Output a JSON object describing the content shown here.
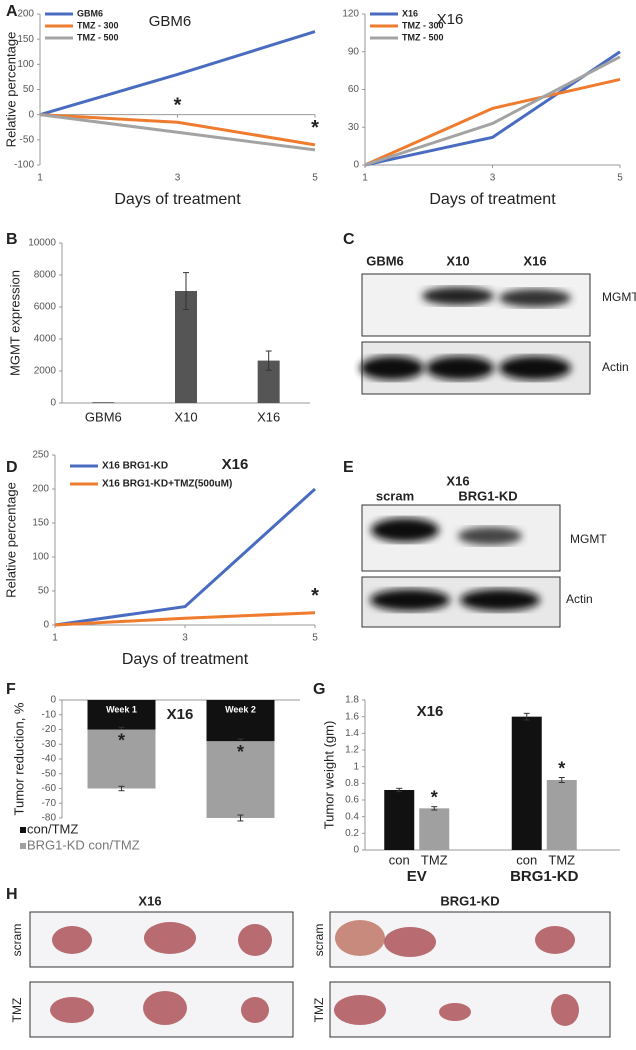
{
  "panels": [
    "A",
    "B",
    "C",
    "D",
    "E",
    "F",
    "G",
    "H"
  ],
  "chart_data": [
    {
      "type": "line",
      "title": "GBM6",
      "x_label": "Days of treatment",
      "y_label": "Relative percentage",
      "x": [
        1,
        3,
        5
      ],
      "xlim": [
        1,
        5
      ],
      "xticks": [
        1,
        3,
        5
      ],
      "ylim": [
        -100,
        200
      ],
      "yticks": [
        -100,
        -50,
        0,
        50,
        100,
        150,
        200
      ],
      "series": [
        {
          "name": "GBM6",
          "color": "#4a6cc0",
          "values": [
            0,
            80,
            165
          ]
        },
        {
          "name": "TMZ - 300",
          "color": "#ef7b2e",
          "values": [
            0,
            -15,
            -60
          ]
        },
        {
          "name": "TMZ - 500",
          "color": "#a3a3a3",
          "values": [
            0,
            -35,
            -70
          ]
        }
      ],
      "annotations": [
        "*",
        "*"
      ]
    },
    {
      "type": "line",
      "title": "X16",
      "x_label": "Days of treatment",
      "x": [
        1,
        3,
        5
      ],
      "xlim": [
        1,
        5
      ],
      "xticks": [
        1,
        3,
        5
      ],
      "ylim": [
        0,
        120
      ],
      "yticks": [
        0,
        30,
        60,
        90,
        120
      ],
      "series": [
        {
          "name": "X16",
          "color": "#4a6cc0",
          "values": [
            0,
            22,
            90
          ]
        },
        {
          "name": "TMZ - 300",
          "color": "#ef7b2e",
          "values": [
            0,
            45,
            68
          ]
        },
        {
          "name": "TMZ - 500",
          "color": "#a3a3a3",
          "values": [
            0,
            33,
            86
          ]
        }
      ]
    },
    {
      "type": "bar",
      "y_label": "MGMT expression",
      "categories": [
        "GBM6",
        "X10",
        "X16"
      ],
      "values": [
        50,
        7000,
        2650
      ],
      "errors": [
        0,
        1150,
        600
      ],
      "color": "#555555",
      "ylim": [
        0,
        10000
      ],
      "yticks": [
        0,
        2000,
        4000,
        6000,
        8000,
        10000
      ]
    },
    {
      "type": "line",
      "title": "X16",
      "x_label": "Days of treatment",
      "y_label": "Relative percentage",
      "x": [
        1,
        3,
        5
      ],
      "xlim": [
        1,
        5
      ],
      "xticks": [
        1,
        3,
        5
      ],
      "ylim": [
        0,
        250
      ],
      "yticks": [
        0,
        50,
        100,
        150,
        200,
        250
      ],
      "series": [
        {
          "name": "X16 BRG1-KD",
          "color": "#4a6cc0",
          "values": [
            0,
            27,
            200
          ]
        },
        {
          "name": "X16 BRG1-KD+TMZ(500uM)",
          "color": "#ef7b2e",
          "values": [
            0,
            10,
            18
          ]
        }
      ],
      "annotations": [
        "*"
      ]
    },
    {
      "type": "stacked_bar",
      "title": "X16",
      "y_label": "Tumor reduction, %",
      "categories": [
        "Week 1",
        "Week 2"
      ],
      "ylim": [
        -80,
        0
      ],
      "yticks": [
        -80,
        -70,
        -60,
        -50,
        -40,
        -30,
        -20,
        -10,
        0
      ],
      "series": [
        {
          "name": "con/TMZ",
          "color": "#111111",
          "values": [
            -20,
            -28
          ],
          "errors": [
            1.5,
            1.5
          ]
        },
        {
          "name": "BRG1-KD  con/TMZ",
          "color": "#a0a0a0",
          "values": [
            -40,
            -52
          ],
          "errors": [
            1.5,
            2
          ]
        }
      ],
      "annotations": [
        "*",
        "*"
      ]
    },
    {
      "type": "grouped_bar",
      "title": "X16",
      "y_label": "Tumor weight (gm)",
      "categories": [
        "EV",
        "BRG1-KD"
      ],
      "ylim": [
        0,
        1.8
      ],
      "yticks": [
        0,
        0.2,
        0.4,
        0.6,
        0.8,
        1,
        1.2,
        1.4,
        1.6,
        1.8
      ],
      "series": [
        {
          "name": "con",
          "color": "#111111",
          "values": [
            0.72,
            1.6
          ],
          "errors": [
            0.02,
            0.04
          ]
        },
        {
          "name": "TMZ",
          "color": "#a0a0a0",
          "values": [
            0.5,
            0.84
          ],
          "errors": [
            0.02,
            0.03
          ]
        }
      ],
      "annotations": [
        "*",
        "*"
      ]
    }
  ],
  "blot_c": {
    "columns": [
      "GBM6",
      "X10",
      "X16"
    ],
    "rows": [
      "MGMT",
      "Actin"
    ]
  },
  "blot_e": {
    "header": "X16",
    "columns": [
      "scram",
      "BRG1-KD"
    ],
    "rows": [
      "MGMT",
      "Actin"
    ]
  },
  "photos_h": {
    "titles": [
      "X16",
      "BRG1-KD"
    ],
    "rows": [
      "scram",
      "TMZ"
    ]
  }
}
